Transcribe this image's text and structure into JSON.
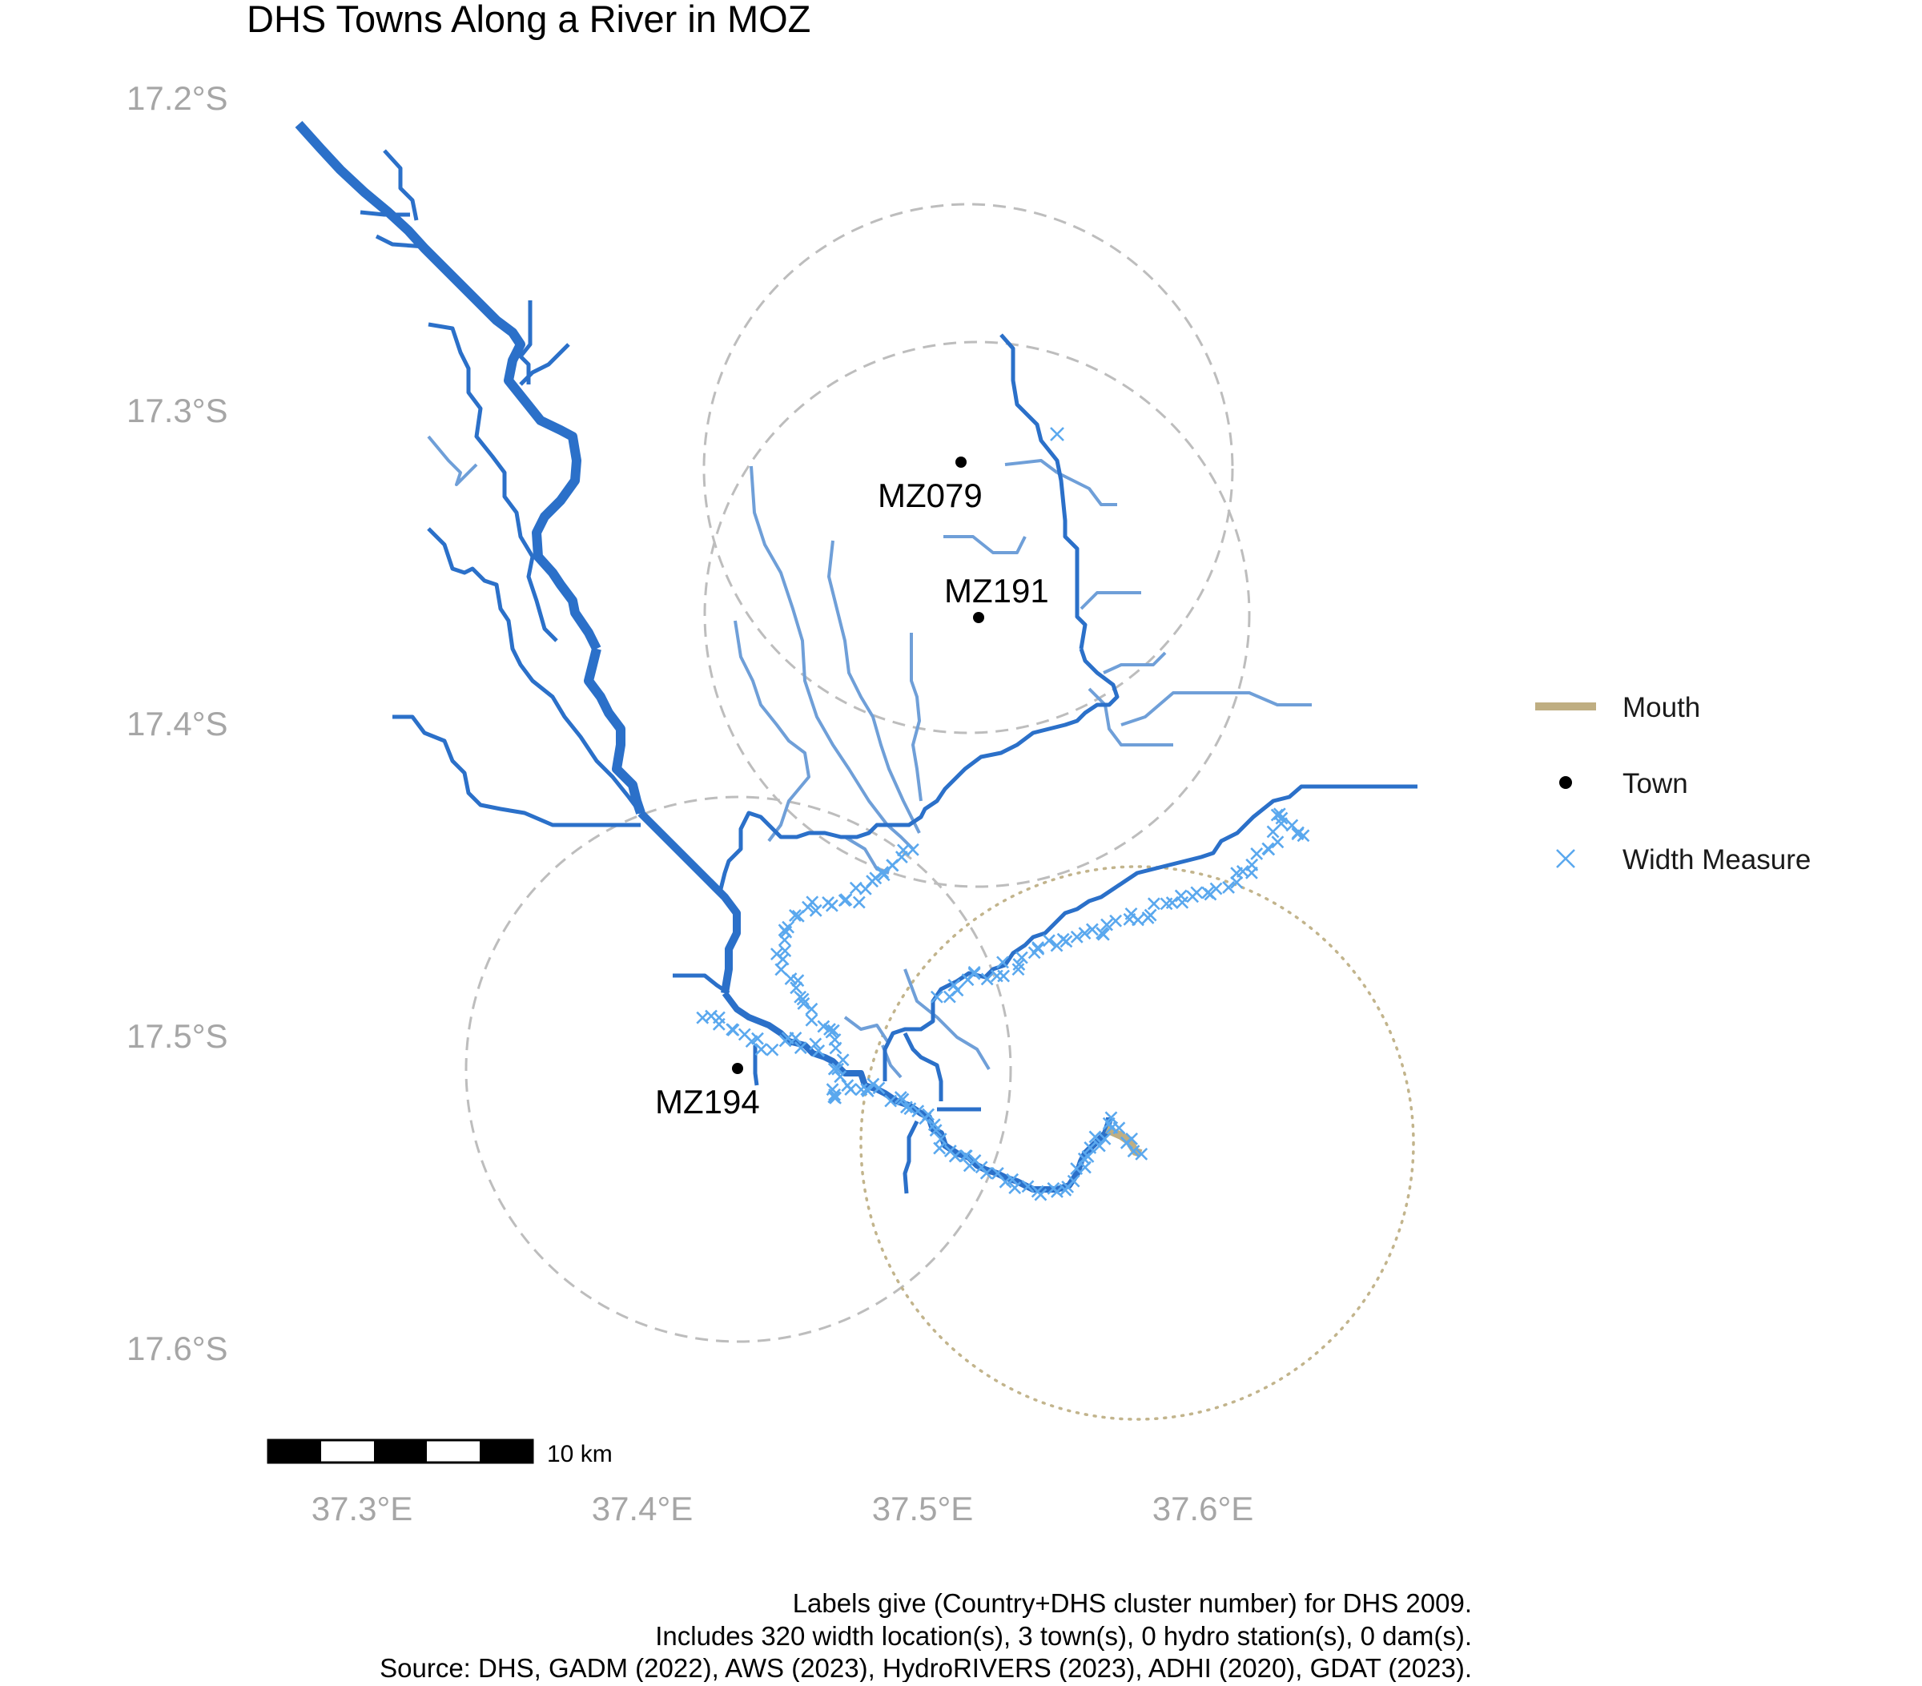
{
  "title": "DHS Towns Along a River in MOZ",
  "axes": {
    "y_ticks": [
      {
        "label": "17.2°S",
        "lat": -17.2
      },
      {
        "label": "17.3°S",
        "lat": -17.3
      },
      {
        "label": "17.4°S",
        "lat": -17.4
      },
      {
        "label": "17.5°S",
        "lat": -17.5
      },
      {
        "label": "17.6°S",
        "lat": -17.6
      }
    ],
    "x_ticks": [
      {
        "label": "37.3°E",
        "lon": 37.3
      },
      {
        "label": "37.4°E",
        "lon": 37.4
      },
      {
        "label": "37.5°E",
        "lon": 37.5
      },
      {
        "label": "37.6°E",
        "lon": 37.6
      }
    ]
  },
  "towns": [
    {
      "label": "MZ079",
      "lon": 37.513,
      "lat": -17.317
    },
    {
      "label": "MZ191",
      "lon": 37.52,
      "lat": -17.367
    },
    {
      "label": "MZ194",
      "lon": 37.433,
      "lat": -17.51
    }
  ],
  "legend": {
    "mouth": "Mouth",
    "town": "Town",
    "width_measure": "Width Measure"
  },
  "scale_bar": {
    "label": "10 km"
  },
  "caption": [
    "Labels give (Country+DHS cluster number) for DHS 2009.",
    "Includes 320 width location(s), 3 town(s), 0 hydro station(s), 0 dam(s).",
    "Source: DHS, GADM (2022), AWS (2023), HydroRIVERS (2023), ADHI (2020), GDAT (2023)."
  ],
  "colors": {
    "river_main": "#2b70c9",
    "river_minor": "#6f9fd8",
    "width_measure": "#5aa8ee",
    "mouth": "#bfae82",
    "buffer_town": "#bdbdbd",
    "buffer_mouth": "#c2b48c",
    "axis_text": "#a6a6a6"
  }
}
